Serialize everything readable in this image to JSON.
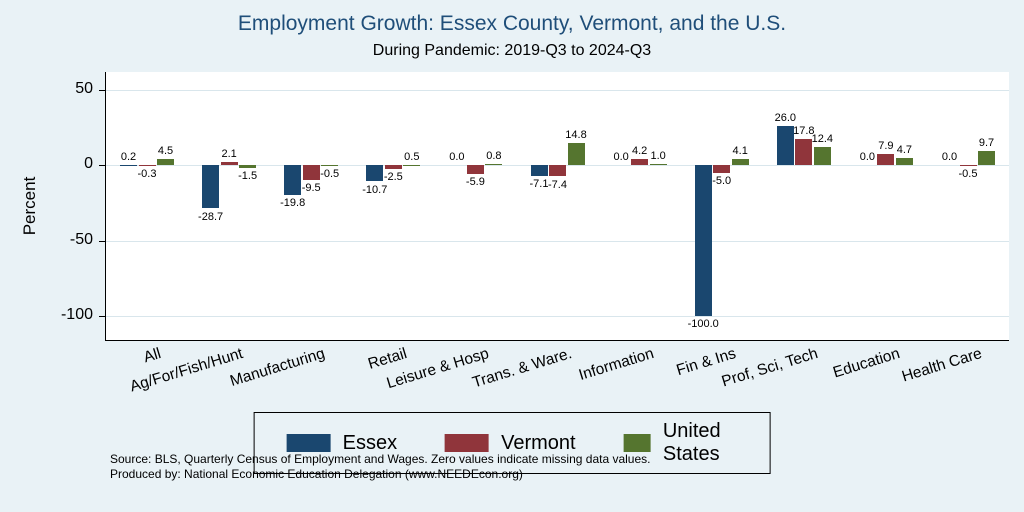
{
  "page": {
    "title": "Employment Growth: Essex County, Vermont, and the U.S.",
    "subtitle": "During Pandemic: 2019-Q3 to 2024-Q3",
    "source_line1": "Source: BLS, Quarterly Census of Employment and Wages. Zero values indicate missing data values.",
    "source_line2": "Produced by: National Economic Education Delegation (www.NEEDEcon.org)"
  },
  "colors": {
    "background": "#e9f2f6",
    "plot_background": "#ffffff",
    "title": "#1f4e79",
    "gridline": "#d9e6ec",
    "essex": "#1a476f",
    "vermont": "#90353b",
    "united_states": "#55752f"
  },
  "chart_data": {
    "type": "bar",
    "title": "Employment Growth: Essex County, Vermont, and the U.S.",
    "subtitle": "During Pandemic: 2019-Q3 to 2024-Q3",
    "xlabel": "",
    "ylabel": "Percent",
    "categories": [
      "All",
      "Ag/For/Fish/Hunt",
      "Manufacturing",
      "Retail",
      "Leisure & Hosp",
      "Trans. & Ware.",
      "Information",
      "Fin & Ins",
      "Prof, Sci, Tech",
      "Education",
      "Health Care"
    ],
    "series": [
      {
        "name": "Essex",
        "color": "#1a476f",
        "values": [
          0.2,
          -28.7,
          -19.8,
          -10.7,
          0.0,
          -7.1,
          0.0,
          -100.0,
          26.0,
          0.0,
          0.0
        ]
      },
      {
        "name": "Vermont",
        "color": "#90353b",
        "values": [
          -0.3,
          2.1,
          -9.5,
          -2.5,
          -5.9,
          -7.4,
          4.2,
          -5.0,
          17.8,
          7.9,
          -0.5
        ]
      },
      {
        "name": "United States",
        "color": "#55752f",
        "values": [
          4.5,
          -1.5,
          -0.5,
          0.5,
          0.8,
          14.8,
          1.0,
          4.1,
          12.4,
          4.7,
          9.7
        ]
      }
    ],
    "yticks": [
      50,
      0,
      -50,
      -100
    ],
    "ylim": [
      -116,
      62
    ],
    "grid": true,
    "legend_position": "bottom",
    "value_labels": true
  }
}
